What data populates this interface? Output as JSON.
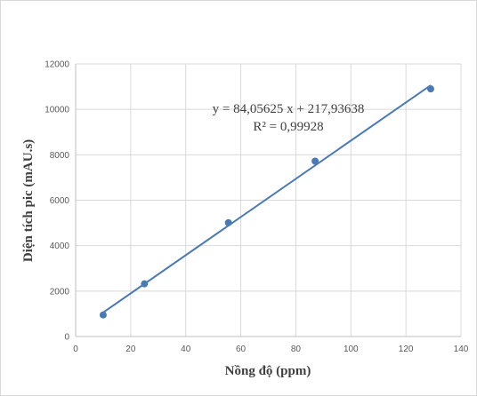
{
  "chart_data": {
    "type": "scatter",
    "xlabel": "Nồng độ (ppm)",
    "ylabel": "Diện tích pic (mAU.s)",
    "xlim": [
      0,
      140
    ],
    "ylim": [
      0,
      12000
    ],
    "x_ticks": [
      0,
      20,
      40,
      60,
      80,
      100,
      120,
      140
    ],
    "y_ticks": [
      0,
      2000,
      4000,
      6000,
      8000,
      10000,
      12000
    ],
    "grid": true,
    "series": [
      {
        "x": [
          10,
          25,
          55.5,
          87,
          129
        ],
        "y": [
          950,
          2320,
          5010,
          7720,
          10900
        ],
        "color": "#4a7ab5",
        "marker": "circle",
        "trendline": "linear"
      }
    ],
    "trendline": {
      "slope": 84.05625,
      "intercept": 217.93638
    },
    "annotations": {
      "equation": "y = 84,05625 x + 217,93638",
      "r_squared": "R² = 0,99928"
    }
  }
}
